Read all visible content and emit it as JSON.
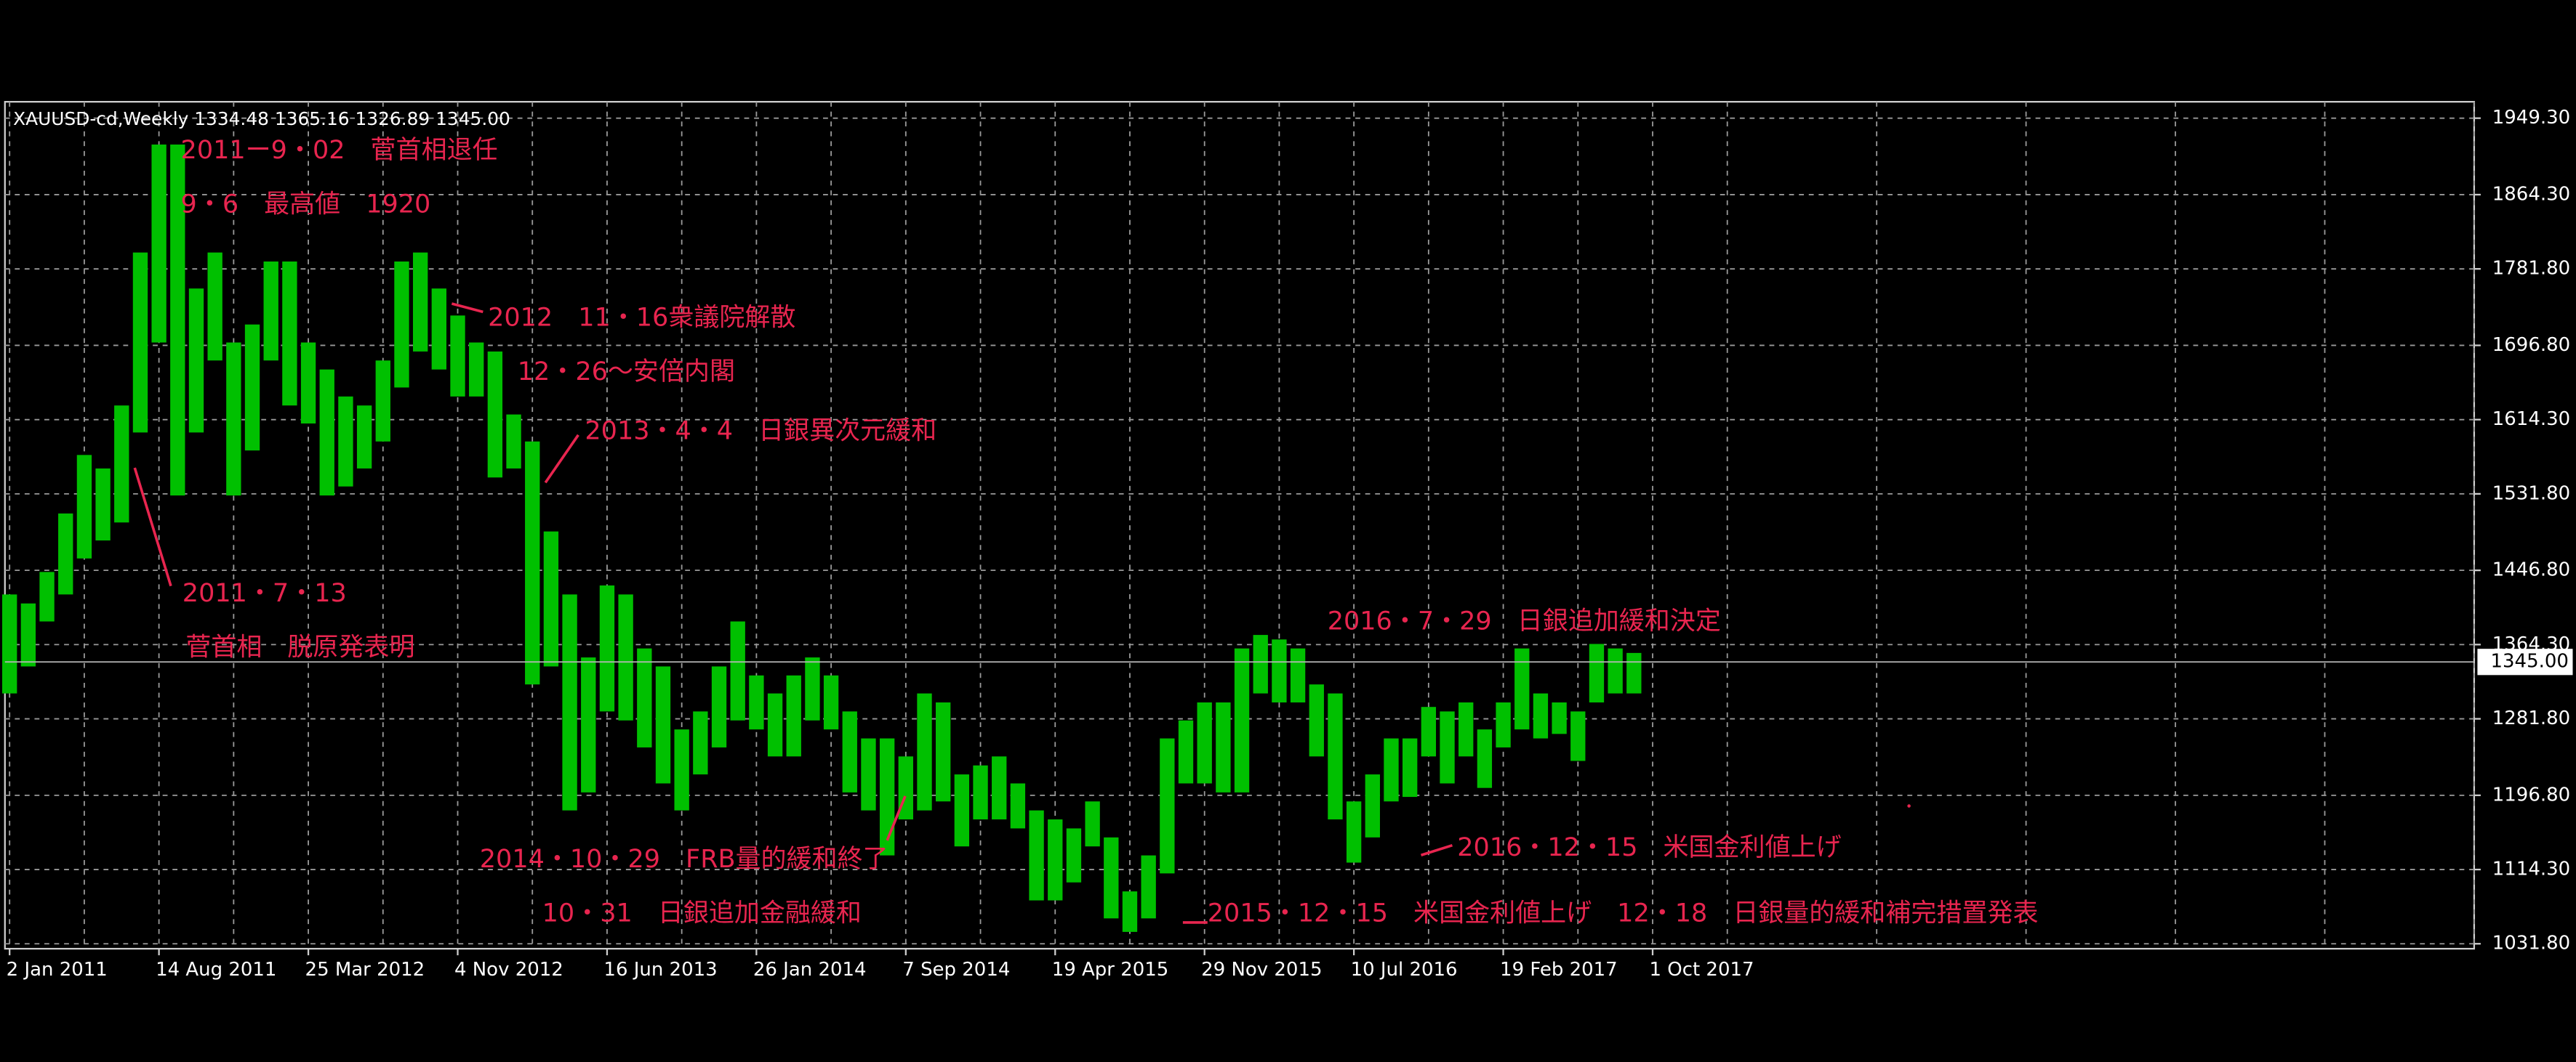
{
  "chart_data": {
    "type": "ohlc",
    "title": "XAUUSD-cd,Weekly  1334.48 1365.16 1326.89 1345.00",
    "x": [
      0,
      4,
      8,
      12,
      16,
      20,
      24,
      28,
      32,
      36,
      40,
      44,
      48,
      52,
      56,
      60,
      64,
      68,
      72,
      76,
      80,
      84,
      88,
      92,
      96,
      100,
      104,
      108,
      112,
      116,
      120,
      124,
      128,
      132,
      136,
      140,
      144,
      148,
      152,
      156,
      160,
      164,
      168,
      172,
      176,
      180,
      184,
      188,
      192,
      196,
      200,
      204,
      208,
      212,
      216,
      220,
      224,
      228,
      232,
      236,
      240,
      244,
      248,
      252,
      256,
      260,
      264,
      268,
      272,
      276,
      280,
      284,
      288,
      292,
      296,
      300,
      304,
      308,
      312,
      316,
      320,
      324,
      328,
      332,
      336,
      340,
      344,
      348
    ],
    "series": [
      {
        "name": "XAUUSD-cd",
        "color": "#00c000",
        "high": [
          1420,
          1410,
          1445,
          1510,
          1575,
          1560,
          1630,
          1800,
          1920,
          1920,
          1760,
          1800,
          1700,
          1720,
          1790,
          1790,
          1700,
          1670,
          1640,
          1630,
          1680,
          1790,
          1800,
          1760,
          1730,
          1700,
          1690,
          1620,
          1590,
          1490,
          1420,
          1350,
          1430,
          1420,
          1360,
          1340,
          1270,
          1290,
          1340,
          1390,
          1330,
          1310,
          1330,
          1350,
          1330,
          1290,
          1260,
          1260,
          1240,
          1310,
          1300,
          1220,
          1230,
          1240,
          1210,
          1180,
          1170,
          1160,
          1190,
          1150,
          1090,
          1130,
          1260,
          1280,
          1300,
          1300,
          1360,
          1375,
          1370,
          1360,
          1320,
          1310,
          1190,
          1220,
          1260,
          1260,
          1295,
          1290,
          1300,
          1270,
          1300,
          1360,
          1310,
          1300,
          1290,
          1365,
          1360,
          1355
        ],
        "low": [
          1310,
          1340,
          1390,
          1420,
          1460,
          1480,
          1500,
          1600,
          1700,
          1530,
          1600,
          1680,
          1530,
          1580,
          1680,
          1630,
          1610,
          1530,
          1540,
          1560,
          1590,
          1650,
          1690,
          1670,
          1640,
          1640,
          1550,
          1560,
          1320,
          1340,
          1180,
          1200,
          1290,
          1280,
          1250,
          1210,
          1180,
          1220,
          1250,
          1280,
          1270,
          1240,
          1240,
          1280,
          1270,
          1200,
          1180,
          1130,
          1170,
          1180,
          1190,
          1140,
          1170,
          1170,
          1160,
          1080,
          1080,
          1100,
          1140,
          1060,
          1045,
          1060,
          1110,
          1210,
          1210,
          1200,
          1200,
          1310,
          1300,
          1300,
          1240,
          1170,
          1122,
          1150,
          1190,
          1195,
          1240,
          1210,
          1240,
          1205,
          1250,
          1270,
          1260,
          1265,
          1235,
          1300,
          1310,
          1310
        ]
      }
    ],
    "xlim": [
      -1,
      528
    ],
    "ylim": [
      1026.3,
      1967.5
    ],
    "xticks": [
      {
        "value": 0,
        "label": "2 Jan 2011"
      },
      {
        "value": 32,
        "label": "14 Aug 2011"
      },
      {
        "value": 64,
        "label": "25 Mar 2012"
      },
      {
        "value": 96,
        "label": "4 Nov 2012"
      },
      {
        "value": 128,
        "label": "16 Jun 2013"
      },
      {
        "value": 160,
        "label": "26 Jan 2014"
      },
      {
        "value": 192,
        "label": "7 Sep 2014"
      },
      {
        "value": 224,
        "label": "19 Apr 2015"
      },
      {
        "value": 256,
        "label": "29 Nov 2015"
      },
      {
        "value": 288,
        "label": "10 Jul 2016"
      },
      {
        "value": 320,
        "label": "19 Feb 2017"
      },
      {
        "value": 352,
        "label": "1 Oct 2017"
      }
    ],
    "yticks": [
      {
        "value": 1031.8,
        "label": "1031.80"
      },
      {
        "value": 1114.3,
        "label": "1114.30"
      },
      {
        "value": 1196.8,
        "label": "1196.80"
      },
      {
        "value": 1281.8,
        "label": "1281.80"
      },
      {
        "value": 1364.3,
        "label": "1364.30"
      },
      {
        "value": 1446.8,
        "label": "1446.80"
      },
      {
        "value": 1531.8,
        "label": "1531.80"
      },
      {
        "value": 1614.3,
        "label": "1614.30"
      },
      {
        "value": 1696.8,
        "label": "1696.80"
      },
      {
        "value": 1781.8,
        "label": "1781.80"
      },
      {
        "value": 1864.3,
        "label": "1864.30"
      },
      {
        "value": 1949.3,
        "label": "1949.30"
      }
    ],
    "last_price": {
      "value": 1345,
      "label": "1345.00"
    },
    "grid": true,
    "annotations": [
      "2011ー9・02　菅首相退任",
      "9・6　最高値　1920",
      "2012　11・16衆議院解散",
      "12・26～安倍内閣",
      "2013・4・4　日銀異次元緩和",
      "2011・7・13",
      "菅首相　脱原発表明",
      "2016・7・29　日銀追加緩和決定",
      "2014・10・29　FRB量的緩和終了",
      "10・31　日銀追加金融緩和",
      "2015・12・15　米国金利値上げ　12・18　日銀量的緩和補完措置発表",
      "2016・12・15　米国金利値上げ"
    ]
  }
}
